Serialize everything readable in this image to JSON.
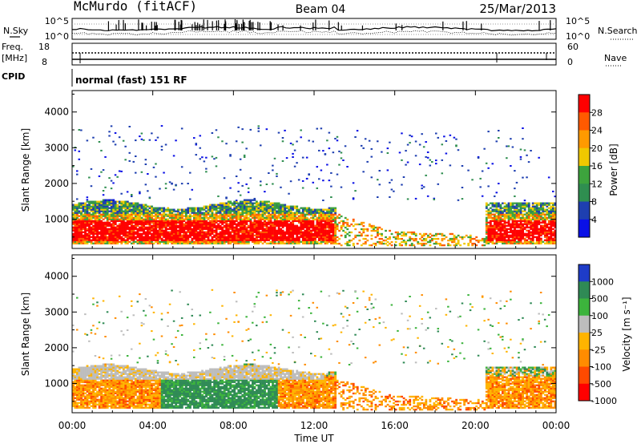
{
  "header": {
    "station": "McMurdo (fitACF)",
    "beam": "Beam 04",
    "date": "25/Mar/2013"
  },
  "noise_panel": {
    "left_label": "N.Sky",
    "right_label": "N.Search",
    "left_ticks": [
      "10^5",
      "10^0"
    ],
    "right_ticks": [
      "10^5",
      "10^0"
    ]
  },
  "freq_panel": {
    "left_label_1": "Freq.",
    "left_label_2": "[MHz]",
    "right_label": "Nave",
    "left_ticks": [
      "18",
      "8"
    ],
    "right_ticks": [
      "60",
      "0"
    ]
  },
  "cpid": {
    "label": "CPID",
    "text": "normal (fast) 151 RF"
  },
  "chart_data": [
    {
      "type": "heatmap",
      "panel": "power",
      "ylabel": "Slant Range [km]",
      "yticks": [
        1000,
        2000,
        3000,
        4000
      ],
      "ylim": [
        180,
        4600
      ],
      "xticks": [
        "00:00",
        "04:00",
        "08:00",
        "12:00",
        "16:00",
        "20:00",
        "00:00"
      ],
      "xlim_hours": [
        0,
        24
      ],
      "colorbar": {
        "label": "Power [dB]",
        "ticks": [
          "28",
          "24",
          "20",
          "16",
          "12",
          "8",
          "4"
        ],
        "colors": [
          "#ff0000",
          "#ff5a00",
          "#ff9a00",
          "#f0c800",
          "#3da33d",
          "#2f8e50",
          "#1e3fb0",
          "#0a10e6"
        ]
      }
    },
    {
      "type": "heatmap",
      "panel": "velocity",
      "ylabel": "Slant Range [km]",
      "yticks": [
        1000,
        2000,
        3000,
        4000
      ],
      "ylim": [
        180,
        4600
      ],
      "xticks": [
        "00:00",
        "04:00",
        "08:00",
        "12:00",
        "16:00",
        "20:00",
        "00:00"
      ],
      "xlabel": "Time UT",
      "xlim_hours": [
        0,
        24
      ],
      "colorbar": {
        "label": "Velocity [m s⁻¹]",
        "ticks": [
          "1000",
          "500",
          "100",
          "25",
          "-25",
          "-100",
          "-500",
          "-1000"
        ],
        "colors": [
          "#1e3cc8",
          "#2f8a55",
          "#3cb43c",
          "#bdbdbd",
          "#ffb400",
          "#ff8c00",
          "#ff4a00",
          "#ff0000"
        ]
      }
    }
  ]
}
